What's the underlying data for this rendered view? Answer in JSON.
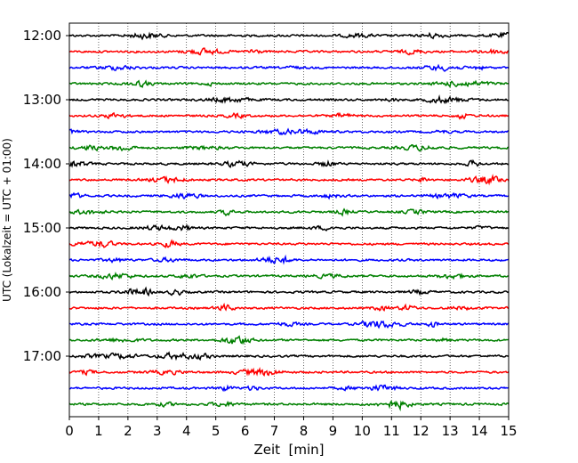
{
  "chart_data": {
    "type": "line",
    "title": "",
    "xlabel": "Zeit  [min]",
    "ylabel": "UTC (Lokalzeit = UTC + 01:00)",
    "xlim": [
      0,
      15
    ],
    "x_ticks": [
      0,
      1,
      2,
      3,
      4,
      5,
      6,
      7,
      8,
      9,
      10,
      11,
      12,
      13,
      14,
      15
    ],
    "y_tick_labels": [
      "12:00",
      "13:00",
      "14:00",
      "15:00",
      "16:00",
      "17:00"
    ],
    "trace_interval_minutes": 15,
    "trace_count": 24,
    "trace_start_times": [
      "12:00",
      "12:15",
      "12:30",
      "12:45",
      "13:00",
      "13:15",
      "13:30",
      "13:45",
      "14:00",
      "14:15",
      "14:30",
      "14:45",
      "15:00",
      "15:15",
      "15:30",
      "15:45",
      "16:00",
      "16:15",
      "16:30",
      "16:45",
      "17:00",
      "17:15",
      "17:30",
      "17:45"
    ],
    "trace_color_cycle": [
      "#000000",
      "#ff0000",
      "#0000ff",
      "#008000"
    ],
    "x_grid": "dotted vertical lines at each minute",
    "legend": "none"
  }
}
